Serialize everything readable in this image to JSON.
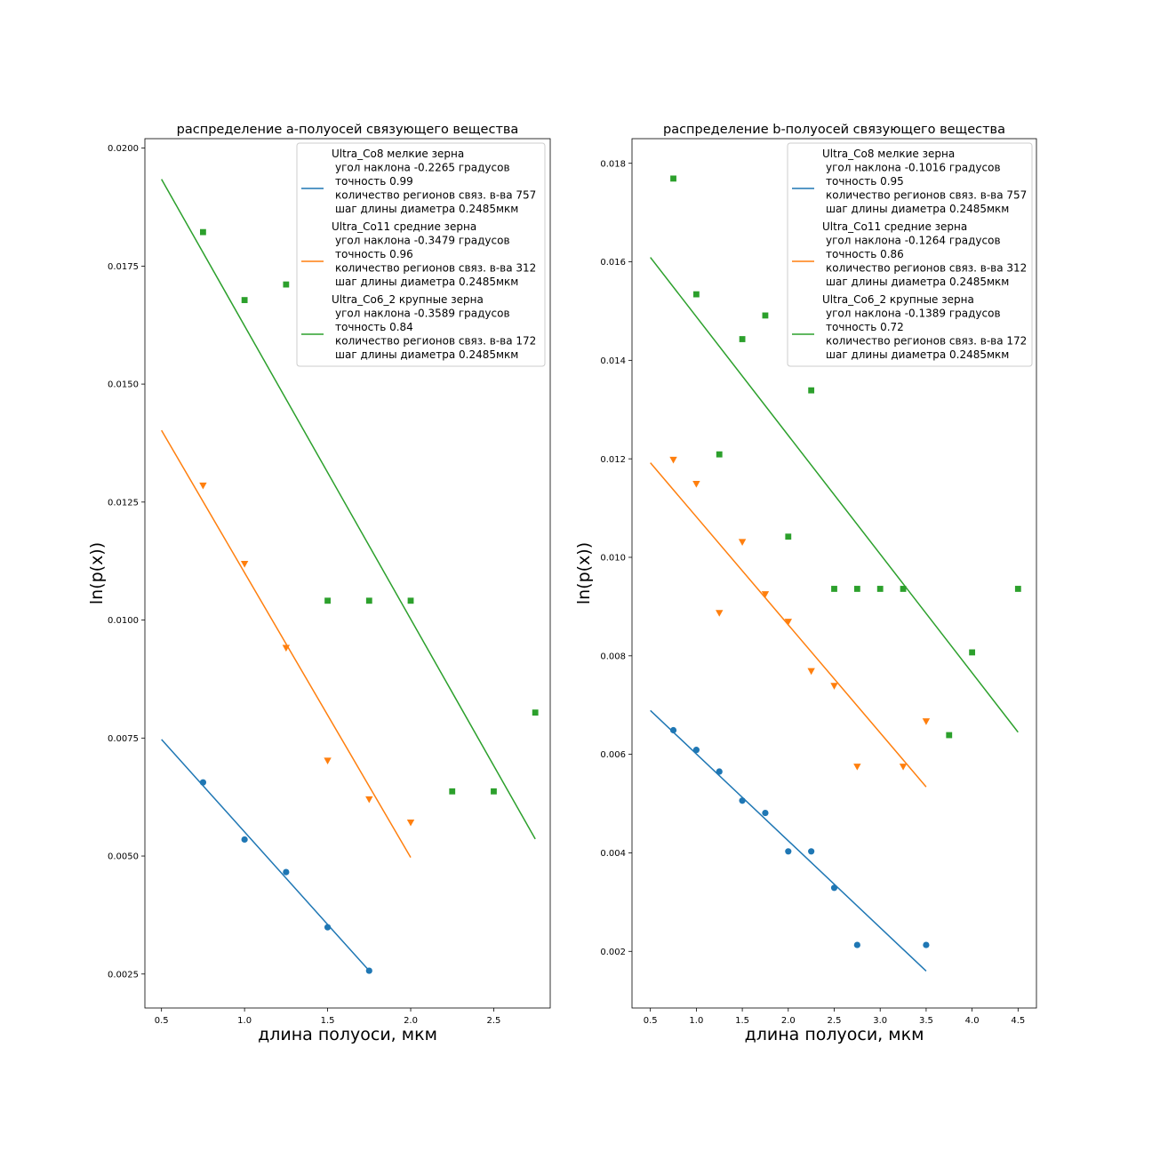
{
  "chart_data": [
    {
      "type": "scatter",
      "title": "распределение a-полуосей связующего вещества",
      "xlabel": "длина полуоси, мкм",
      "ylabel": "ln(p(x))",
      "xlim": [
        0.4,
        2.84
      ],
      "ylim": [
        0.00178,
        0.0202
      ],
      "xticks": [
        "0.5",
        "1.0",
        "1.5",
        "2.0",
        "2.5"
      ],
      "yticks": [
        "0.0025",
        "0.0050",
        "0.0075",
        "0.0100",
        "0.0125",
        "0.0150",
        "0.0175",
        "0.0200"
      ],
      "legend_position": "upper-right",
      "series": [
        {
          "name": "Ultra_Co8 мелкие зерна",
          "legend_lines": [
            "угол наклона -0.2265 градусов",
            "точность 0.99",
            "количество регионов связ. в-ва  757",
            "шаг длины диаметра 0.2485мкм"
          ],
          "color": "#1f77b4",
          "marker": "circle",
          "x": [
            0.75,
            1.0,
            1.25,
            1.5,
            1.75
          ],
          "y": [
            0.00656,
            0.00535,
            0.00466,
            0.00349,
            0.00257
          ],
          "fit": {
            "x": [
              0.5,
              1.75
            ],
            "y": [
              0.00747,
              0.00257
            ]
          }
        },
        {
          "name": "Ultra_Co11 средние зерна",
          "legend_lines": [
            "угол наклона -0.3479 градусов",
            "точность 0.96",
            "количество регионов связ. в-ва  312",
            "шаг длины диаметра 0.2485мкм"
          ],
          "color": "#ff7f0e",
          "marker": "triangle-down",
          "x": [
            0.75,
            1.0,
            1.25,
            1.5,
            1.75,
            2.0
          ],
          "y": [
            0.01285,
            0.01119,
            0.00941,
            0.00702,
            0.0062,
            0.00571
          ],
          "fit": {
            "x": [
              0.5,
              2.0
            ],
            "y": [
              0.01402,
              0.00497
            ]
          }
        },
        {
          "name": "Ultra_Co6_2 крупные зерна",
          "legend_lines": [
            "угол наклона -0.3589 градусов",
            "точность 0.84",
            "количество регионов связ. в-ва  172",
            "шаг длины диаметра 0.2485мкм"
          ],
          "color": "#2ca02c",
          "marker": "square",
          "x": [
            0.75,
            1.0,
            1.25,
            1.5,
            1.75,
            2.0,
            2.25,
            2.5,
            2.75
          ],
          "y": [
            0.01822,
            0.01678,
            0.01711,
            0.01041,
            0.01041,
            0.01041,
            0.00637,
            0.00637,
            0.00804
          ],
          "fit": {
            "x": [
              0.5,
              2.75
            ],
            "y": [
              0.01934,
              0.00536
            ]
          }
        }
      ]
    },
    {
      "type": "scatter",
      "title": "распределение b-полуосей связующего вещества",
      "xlabel": "длина полуоси, мкм",
      "ylabel": "ln(p(x))",
      "xlim": [
        0.3,
        4.7
      ],
      "ylim": [
        0.00085,
        0.0185
      ],
      "xticks": [
        "0.5",
        "1.0",
        "1.5",
        "2.0",
        "2.5",
        "3.0",
        "3.5",
        "4.0",
        "4.5"
      ],
      "yticks": [
        "0.002",
        "0.004",
        "0.006",
        "0.008",
        "0.010",
        "0.012",
        "0.014",
        "0.016",
        "0.018"
      ],
      "legend_position": "upper-right",
      "series": [
        {
          "name": "Ultra_Co8 мелкие зерна",
          "legend_lines": [
            "угол наклона -0.1016 градусов",
            "точность 0.95",
            "количество регионов связ. в-ва 757",
            "шаг длины диаметра 0.2485мкм"
          ],
          "color": "#1f77b4",
          "marker": "circle",
          "x": [
            0.75,
            1.0,
            1.25,
            1.5,
            1.75,
            2.0,
            2.25,
            2.5,
            2.75,
            3.5
          ],
          "y": [
            0.00649,
            0.00609,
            0.00565,
            0.00506,
            0.00481,
            0.00403,
            0.00403,
            0.00329,
            0.00213,
            0.00213
          ],
          "fit": {
            "x": [
              0.5,
              3.5
            ],
            "y": [
              0.00689,
              0.0016
            ]
          }
        },
        {
          "name": "Ultra_Co11 средние зерна",
          "legend_lines": [
            "угол наклона -0.1264 градусов",
            "точность 0.86",
            "количество регионов связ. в-ва 312",
            "шаг длины диаметра 0.2485мкм"
          ],
          "color": "#ff7f0e",
          "marker": "triangle-down",
          "x": [
            0.75,
            1.0,
            1.25,
            1.5,
            1.75,
            2.0,
            2.25,
            2.5,
            2.75,
            3.25,
            3.5
          ],
          "y": [
            0.01198,
            0.01149,
            0.00887,
            0.01031,
            0.00925,
            0.00869,
            0.00769,
            0.00739,
            0.00575,
            0.00575,
            0.00667
          ],
          "fit": {
            "x": [
              0.5,
              3.5
            ],
            "y": [
              0.01192,
              0.00534
            ]
          }
        },
        {
          "name": "Ultra_Co6_2 крупные зерна",
          "legend_lines": [
            "угол наклона -0.1389 градусов",
            "точность 0.72",
            "количество регионов связ. в-ва 172",
            "шаг длины диаметра 0.2485мкм"
          ],
          "color": "#2ca02c",
          "marker": "square",
          "x": [
            0.75,
            1.0,
            1.25,
            1.5,
            1.75,
            2.0,
            2.25,
            2.5,
            2.75,
            3.0,
            3.25,
            3.75,
            4.0,
            4.5
          ],
          "y": [
            0.01769,
            0.01534,
            0.01209,
            0.01443,
            0.01491,
            0.01042,
            0.01339,
            0.00936,
            0.00936,
            0.00936,
            0.00936,
            0.00639,
            0.00807,
            0.00936
          ],
          "fit": {
            "x": [
              0.5,
              4.5
            ],
            "y": [
              0.01609,
              0.00645
            ]
          }
        }
      ]
    }
  ]
}
